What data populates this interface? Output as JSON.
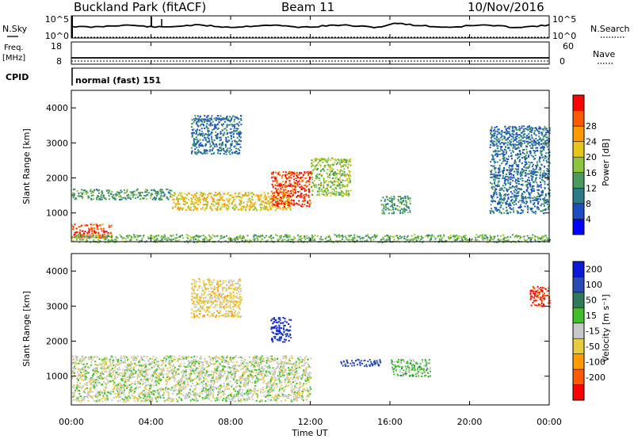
{
  "header": {
    "station": "Buckland Park (fitACF)",
    "beam": "Beam 11",
    "date": "10/Nov/2016"
  },
  "noise_panel": {
    "left_label": "N.Sky",
    "right_label": "N.Search",
    "left_ticks": [
      "10^5",
      "10^0"
    ],
    "right_ticks": [
      "10^5",
      "10^0"
    ]
  },
  "freq_panel": {
    "left_label": "Freq.",
    "left_unit": "[MHz]",
    "right_label": "Nave",
    "left_ticks": [
      "18",
      "8"
    ],
    "right_ticks": [
      "60",
      "0"
    ]
  },
  "cpid_panel": {
    "label": "CPID",
    "mode_text": "normal (fast) 151"
  },
  "xaxis": {
    "label": "Time UT",
    "ticks": [
      "00:00",
      "04:00",
      "08:00",
      "12:00",
      "16:00",
      "20:00",
      "00:00"
    ]
  },
  "power_panel": {
    "ylabel": "Slant Range [km]",
    "yticks": [
      "1000",
      "2000",
      "3000",
      "4000"
    ],
    "colorbar_label": "Power [dB]",
    "colorbar_ticks": [
      "4",
      "8",
      "12",
      "16",
      "20",
      "24",
      "28"
    ],
    "colors": [
      "#0000ff",
      "#1c4ec2",
      "#2b7b8a",
      "#4a9a5e",
      "#8cc63f",
      "#e6c619",
      "#ff9900",
      "#ff5a00",
      "#ff0000"
    ]
  },
  "velocity_panel": {
    "ylabel": "Slant Range [km]",
    "yticks": [
      "1000",
      "2000",
      "3000",
      "4000"
    ],
    "colorbar_label": "Velocity [m s⁻¹]",
    "colorbar_ticks": [
      "200",
      "100",
      "50",
      "15",
      "-15",
      "-50",
      "-100",
      "-200"
    ],
    "colors": [
      "#0a1ad8",
      "#2a4ab5",
      "#2e7a5a",
      "#3fbf2a",
      "#c8c8c8",
      "#e8cc40",
      "#ff9a00",
      "#ff5a00",
      "#ff0000"
    ]
  },
  "chart_data": [
    {
      "type": "heatmap",
      "title": "Power [dB]",
      "xlabel": "Time UT",
      "ylabel": "Slant Range [km]",
      "x_range": [
        "00:00",
        "24:00"
      ],
      "ylim": [
        180,
        4500
      ],
      "colorbar_range": [
        0,
        32
      ],
      "colorbar_ticks": [
        4,
        8,
        12,
        16,
        20,
        24,
        28
      ],
      "features": [
        {
          "time": "00:00-02:00",
          "range": [
            300,
            700
          ],
          "value": 28
        },
        {
          "time": "00:00-05:00",
          "range": [
            1400,
            1700
          ],
          "value": 12
        },
        {
          "time": "05:00-11:00",
          "range": [
            1100,
            1600
          ],
          "value": 20
        },
        {
          "time": "10:00-12:00",
          "range": [
            1200,
            2200
          ],
          "value": 28
        },
        {
          "time": "12:00-14:00",
          "range": [
            1500,
            2600
          ],
          "value": 16
        },
        {
          "time": "06:00-08:30",
          "range": [
            2700,
            3800
          ],
          "value": 8
        },
        {
          "time": "15:30-17:00",
          "range": [
            1000,
            1500
          ],
          "value": 12
        },
        {
          "time": "21:00-24:00",
          "range": [
            1000,
            3500
          ],
          "value": 8
        },
        {
          "time": "00:00-24:00",
          "range": [
            180,
            400
          ],
          "value": 14
        }
      ]
    },
    {
      "type": "heatmap",
      "title": "Velocity [m s⁻¹]",
      "xlabel": "Time UT",
      "ylabel": "Slant Range [km]",
      "x_range": [
        "00:00",
        "24:00"
      ],
      "ylim": [
        180,
        4500
      ],
      "colorbar_range": [
        -250,
        250
      ],
      "colorbar_ticks": [
        200,
        100,
        50,
        15,
        -15,
        -50,
        -100,
        -200
      ],
      "features": [
        {
          "time": "00:00-12:00",
          "range": [
            300,
            1600
          ],
          "value": 0
        },
        {
          "time": "10:00-11:00",
          "range": [
            2000,
            2700
          ],
          "value": 200
        },
        {
          "time": "13:30-15:30",
          "range": [
            1300,
            1500
          ],
          "value": 150
        },
        {
          "time": "16:00-18:00",
          "range": [
            1000,
            1500
          ],
          "value": 30
        },
        {
          "time": "23:00-24:00",
          "range": [
            3000,
            3600
          ],
          "value": -200
        },
        {
          "time": "06:00-08:30",
          "range": [
            2700,
            3800
          ],
          "value": -30
        }
      ]
    }
  ]
}
